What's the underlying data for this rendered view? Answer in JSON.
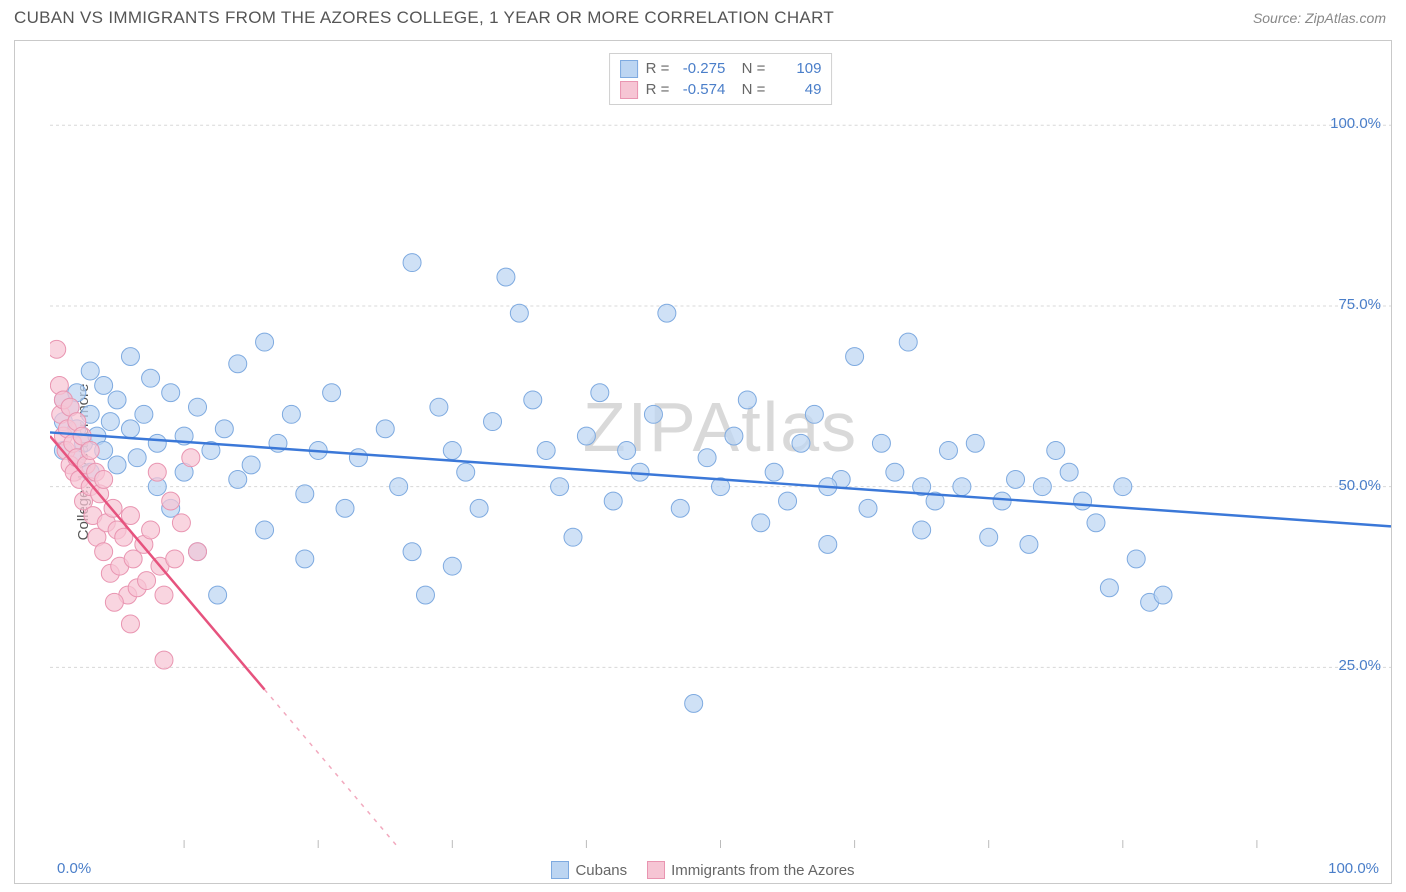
{
  "title": "CUBAN VS IMMIGRANTS FROM THE AZORES COLLEGE, 1 YEAR OR MORE CORRELATION CHART",
  "source": "Source: ZipAtlas.com",
  "watermark": "ZIPAtlas",
  "ylabel": "College, 1 year or more",
  "chart": {
    "type": "scatter",
    "xlim": [
      0,
      100
    ],
    "ylim": [
      0,
      110
    ],
    "grid_y": [
      25,
      50,
      75,
      100
    ],
    "y_tick_labels": [
      "25.0%",
      "50.0%",
      "75.0%",
      "100.0%"
    ],
    "x_tick_left": "0.0%",
    "x_tick_right": "100.0%",
    "x_minor_ticks": [
      10,
      20,
      30,
      40,
      50,
      60,
      70,
      80,
      90
    ],
    "background_color": "#ffffff",
    "grid_color": "#d8d8d8",
    "axis_color": "#c9c9c9",
    "marker_radius": 9,
    "line_width": 2.5
  },
  "series": [
    {
      "name": "Cubans",
      "fill": "#bcd5f2",
      "stroke": "#7eaae0",
      "line_color": "#3b78d8",
      "R": "-0.275",
      "N": "109",
      "trend": {
        "x1": 0,
        "y1": 57.5,
        "x2": 100,
        "y2": 44.5
      },
      "points": [
        [
          1,
          62
        ],
        [
          1,
          59
        ],
        [
          1,
          55
        ],
        [
          1.5,
          61
        ],
        [
          2,
          58
        ],
        [
          2,
          63
        ],
        [
          2,
          54
        ],
        [
          2.5,
          56
        ],
        [
          3,
          66
        ],
        [
          3,
          60
        ],
        [
          3,
          52
        ],
        [
          3.5,
          57
        ],
        [
          4,
          64
        ],
        [
          4,
          55
        ],
        [
          4.5,
          59
        ],
        [
          5,
          62
        ],
        [
          5,
          53
        ],
        [
          6,
          68
        ],
        [
          6,
          58
        ],
        [
          6.5,
          54
        ],
        [
          7,
          60
        ],
        [
          7.5,
          65
        ],
        [
          8,
          56
        ],
        [
          8,
          50
        ],
        [
          9,
          63
        ],
        [
          9,
          47
        ],
        [
          10,
          57
        ],
        [
          10,
          52
        ],
        [
          11,
          61
        ],
        [
          11,
          41
        ],
        [
          12,
          55
        ],
        [
          12.5,
          35
        ],
        [
          13,
          58
        ],
        [
          14,
          51
        ],
        [
          14,
          67
        ],
        [
          15,
          53
        ],
        [
          16,
          70
        ],
        [
          16,
          44
        ],
        [
          17,
          56
        ],
        [
          18,
          60
        ],
        [
          19,
          49
        ],
        [
          19,
          40
        ],
        [
          20,
          55
        ],
        [
          21,
          63
        ],
        [
          22,
          47
        ],
        [
          23,
          54
        ],
        [
          25,
          58
        ],
        [
          26,
          50
        ],
        [
          27,
          81
        ],
        [
          27,
          41
        ],
        [
          28,
          35
        ],
        [
          29,
          61
        ],
        [
          30,
          55
        ],
        [
          30,
          39
        ],
        [
          31,
          52
        ],
        [
          32,
          47
        ],
        [
          33,
          59
        ],
        [
          34,
          79
        ],
        [
          35,
          74
        ],
        [
          36,
          62
        ],
        [
          37,
          55
        ],
        [
          38,
          50
        ],
        [
          39,
          43
        ],
        [
          40,
          57
        ],
        [
          41,
          63
        ],
        [
          42,
          48
        ],
        [
          43,
          55
        ],
        [
          44,
          52
        ],
        [
          45,
          60
        ],
        [
          46,
          74
        ],
        [
          47,
          47
        ],
        [
          48,
          20
        ],
        [
          49,
          54
        ],
        [
          50,
          50
        ],
        [
          51,
          57
        ],
        [
          52,
          62
        ],
        [
          53,
          45
        ],
        [
          54,
          52
        ],
        [
          55,
          48
        ],
        [
          56,
          56
        ],
        [
          57,
          60
        ],
        [
          58,
          42
        ],
        [
          59,
          51
        ],
        [
          60,
          68
        ],
        [
          61,
          47
        ],
        [
          62,
          56
        ],
        [
          63,
          52
        ],
        [
          64,
          70
        ],
        [
          65,
          44
        ],
        [
          66,
          48
        ],
        [
          67,
          55
        ],
        [
          68,
          50
        ],
        [
          69,
          56
        ],
        [
          70,
          43
        ],
        [
          71,
          48
        ],
        [
          72,
          51
        ],
        [
          73,
          42
        ],
        [
          74,
          50
        ],
        [
          76,
          52
        ],
        [
          77,
          48
        ],
        [
          79,
          36
        ],
        [
          80,
          50
        ],
        [
          81,
          40
        ],
        [
          82,
          34
        ],
        [
          83,
          35
        ],
        [
          75,
          55
        ],
        [
          78,
          45
        ],
        [
          65,
          50
        ],
        [
          58,
          50
        ]
      ]
    },
    {
      "name": "Immigrants from the Azores",
      "fill": "#f6c5d4",
      "stroke": "#e995b1",
      "line_color": "#e6537e",
      "R": "-0.574",
      "N": "49",
      "trend": {
        "x1": 0,
        "y1": 57,
        "x2": 26,
        "y2": 0
      },
      "trend_dash_from_x": 16,
      "points": [
        [
          0.5,
          69
        ],
        [
          0.7,
          64
        ],
        [
          0.8,
          60
        ],
        [
          1,
          57
        ],
        [
          1,
          62
        ],
        [
          1.2,
          55
        ],
        [
          1.3,
          58
        ],
        [
          1.5,
          53
        ],
        [
          1.5,
          61
        ],
        [
          1.7,
          56
        ],
        [
          1.8,
          52
        ],
        [
          2,
          54
        ],
        [
          2,
          59
        ],
        [
          2.2,
          51
        ],
        [
          2.4,
          57
        ],
        [
          2.5,
          48
        ],
        [
          2.7,
          53
        ],
        [
          3,
          50
        ],
        [
          3,
          55
        ],
        [
          3.2,
          46
        ],
        [
          3.4,
          52
        ],
        [
          3.5,
          43
        ],
        [
          3.7,
          49
        ],
        [
          4,
          41
        ],
        [
          4,
          51
        ],
        [
          4.2,
          45
        ],
        [
          4.5,
          38
        ],
        [
          4.7,
          47
        ],
        [
          5,
          44
        ],
        [
          5.2,
          39
        ],
        [
          5.5,
          43
        ],
        [
          5.8,
          35
        ],
        [
          6,
          46
        ],
        [
          6.2,
          40
        ],
        [
          6.5,
          36
        ],
        [
          7,
          42
        ],
        [
          7.2,
          37
        ],
        [
          7.5,
          44
        ],
        [
          8,
          52
        ],
        [
          8.2,
          39
        ],
        [
          8.5,
          35
        ],
        [
          9,
          48
        ],
        [
          9.3,
          40
        ],
        [
          9.8,
          45
        ],
        [
          10.5,
          54
        ],
        [
          11,
          41
        ],
        [
          8.5,
          26
        ],
        [
          6,
          31
        ],
        [
          4.8,
          34
        ]
      ]
    }
  ],
  "bottom_legend": [
    {
      "label": "Cubans",
      "fill": "#bcd5f2",
      "stroke": "#7eaae0"
    },
    {
      "label": "Immigrants from the Azores",
      "fill": "#f6c5d4",
      "stroke": "#e995b1"
    }
  ]
}
